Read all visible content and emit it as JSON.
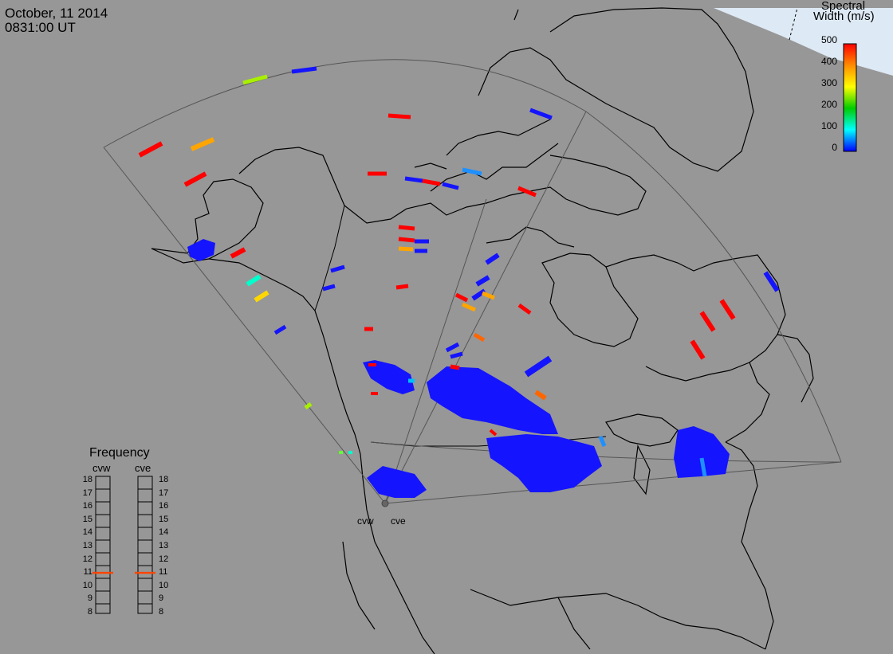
{
  "header": {
    "date": "October, 11 2014",
    "time": "0831:00 UT"
  },
  "colorbar": {
    "title_line1": "Spectral",
    "title_line2": "Width (m/s)",
    "ticks": [
      "500",
      "400",
      "300",
      "200",
      "100",
      "0"
    ],
    "colors": [
      "#ff0000",
      "#ffa500",
      "#ffff00",
      "#00cc00",
      "#00ffff",
      "#0000ff"
    ]
  },
  "frequency_panel": {
    "title": "Frequency",
    "radars": [
      {
        "name": "cvw",
        "current_mhz": 10.7
      },
      {
        "name": "cve",
        "current_mhz": 10.7
      }
    ],
    "levels": [
      "18",
      "17",
      "16",
      "15",
      "14",
      "13",
      "12",
      "11",
      "10",
      "9",
      "8"
    ],
    "marker_color": "#ff4500"
  },
  "radar_sites": [
    {
      "name": "cvw"
    },
    {
      "name": "cve"
    }
  ],
  "map_colors": {
    "background": "#979797",
    "coastline": "#000000",
    "fov_outline": "#555555",
    "ice": "#d8e6f2"
  }
}
